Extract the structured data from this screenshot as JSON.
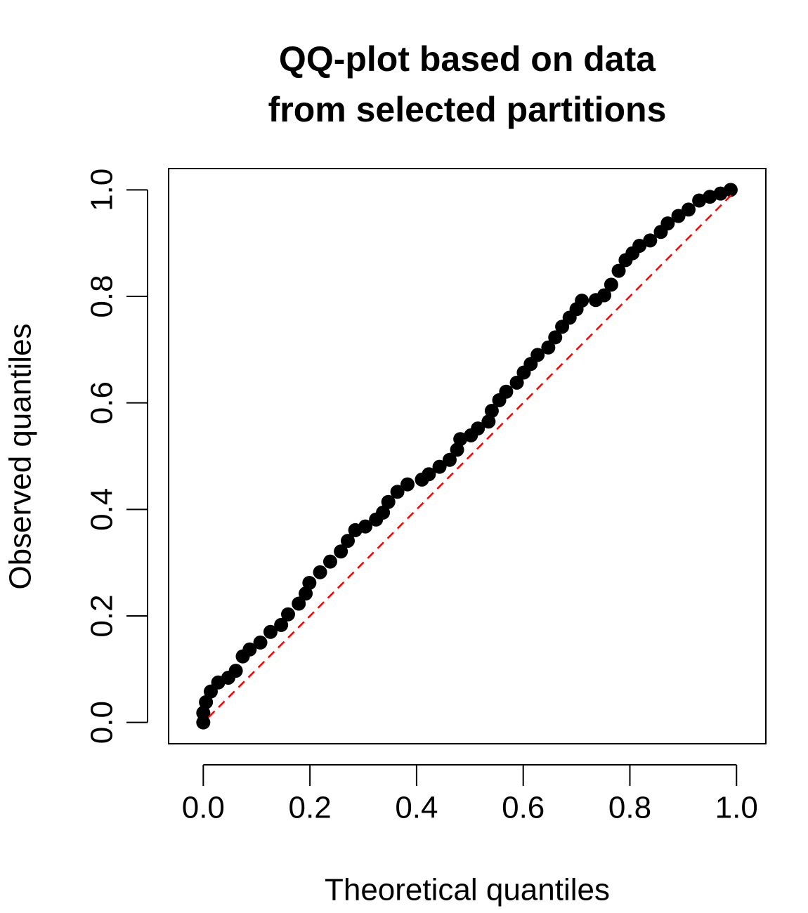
{
  "chart_data": {
    "type": "scatter",
    "title": [
      "QQ-plot based on data",
      "from selected partitions"
    ],
    "x_label": "Theoretical quantiles",
    "y_label": "Observed quantiles",
    "xlim": [
      -0.065,
      1.055
    ],
    "ylim": [
      -0.04,
      1.04
    ],
    "xticks": [
      {
        "value": 0,
        "label": "0.0"
      },
      0.2,
      0.4,
      0.6,
      0.8,
      {
        "value": 1,
        "label": "1.0"
      }
    ],
    "yticks": [
      {
        "value": 0,
        "label": "0.0"
      },
      0.2,
      0.4,
      0.6,
      0.8,
      {
        "value": 1,
        "label": "1.0"
      }
    ],
    "color": "#000000",
    "x": [
      0,
      0,
      0.005,
      0.014,
      0.028,
      0.047,
      0.061,
      0.074,
      0.087,
      0.107,
      0.126,
      0.146,
      0.159,
      0.179,
      0.192,
      0.199,
      0.219,
      0.238,
      0.258,
      0.271,
      0.285,
      0.304,
      0.324,
      0.337,
      0.347,
      0.364,
      0.383,
      0.41,
      0.423,
      0.443,
      0.462,
      0.476,
      0.482,
      0.502,
      0.515,
      0.535,
      0.541,
      0.555,
      0.568,
      0.588,
      0.601,
      0.614,
      0.627,
      0.647,
      0.66,
      0.673,
      0.687,
      0.7,
      0.71,
      0.736,
      0.752,
      0.765,
      0.779,
      0.792,
      0.805,
      0.818,
      0.838,
      0.858,
      0.871,
      0.891,
      0.91,
      0.93,
      0.95,
      0.97,
      0.989
    ],
    "values": [
      0,
      0.018,
      0.038,
      0.058,
      0.075,
      0.084,
      0.097,
      0.124,
      0.137,
      0.15,
      0.17,
      0.183,
      0.203,
      0.223,
      0.242,
      0.262,
      0.282,
      0.302,
      0.321,
      0.341,
      0.361,
      0.368,
      0.381,
      0.394,
      0.414,
      0.433,
      0.447,
      0.456,
      0.466,
      0.48,
      0.493,
      0.512,
      0.532,
      0.539,
      0.552,
      0.565,
      0.585,
      0.605,
      0.621,
      0.638,
      0.657,
      0.673,
      0.69,
      0.704,
      0.723,
      0.743,
      0.76,
      0.776,
      0.792,
      0.793,
      0.802,
      0.822,
      0.848,
      0.868,
      0.881,
      0.895,
      0.905,
      0.921,
      0.937,
      0.951,
      0.963,
      0.98,
      0.987,
      0.993,
      1.0
    ],
    "reference_line": {
      "x": [
        0.01,
        0.99
      ],
      "y": [
        0.01,
        0.99
      ],
      "color": "#ff0000"
    }
  }
}
